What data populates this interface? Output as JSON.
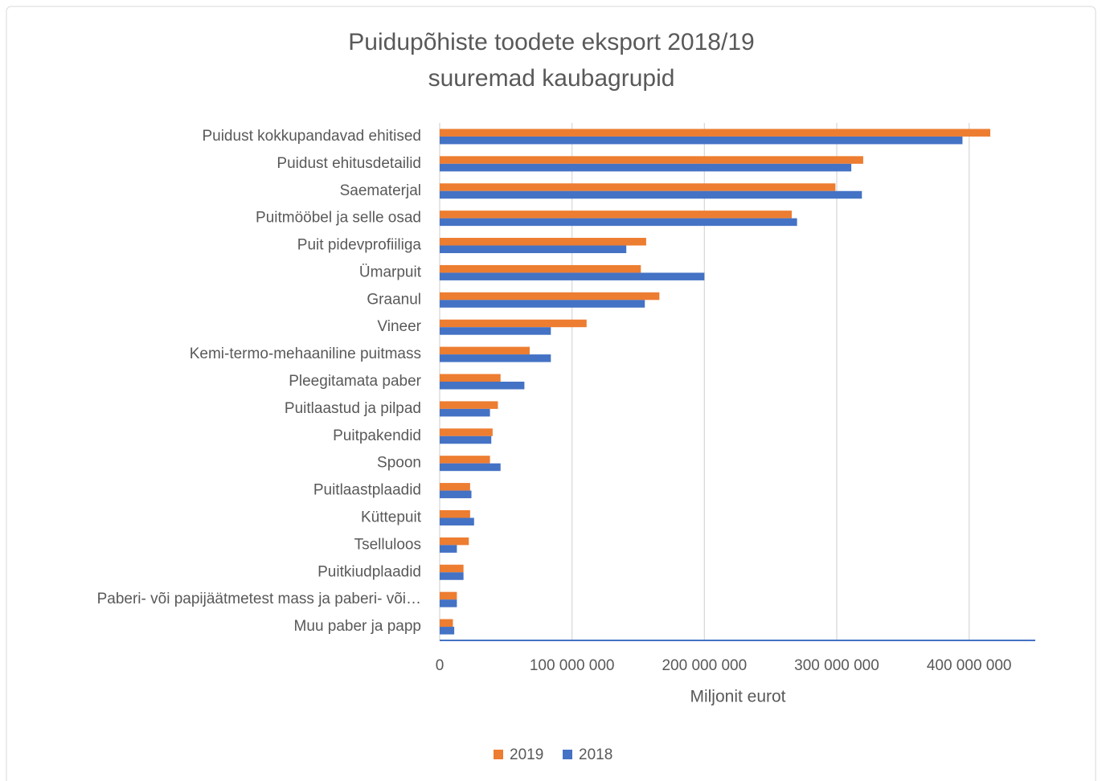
{
  "chart_data": {
    "type": "bar",
    "orientation": "horizontal",
    "title": "Puidupõhiste toodete eksport 2018/19",
    "subtitle": "suuremad kaubagrupid",
    "x_label": "Miljonit eurot",
    "categories": [
      "Puidust kokkupandavad ehitised",
      "Puidust ehitusdetailid",
      "Saematerjal",
      "Puitmööbel ja selle osad",
      "Puit pidevprofiiliga",
      "Ümarpuit",
      "Graanul",
      "Vineer",
      "Kemi-termo-mehaaniline puitmass",
      "Pleegitamata paber",
      "Puitlaastud ja pilpad",
      "Puitpakendid",
      "Spoon",
      "Puitlaastplaadid",
      "Küttepuit",
      "Tselluloos",
      "Puitkiudplaadid",
      "Paberi- või papijäätmetest mass ja paberi- või…",
      "Muu paber ja papp"
    ],
    "series": [
      {
        "name": "2019",
        "color": "#ed7d31",
        "values": [
          416000000,
          320000000,
          299000000,
          266000000,
          156000000,
          152000000,
          166000000,
          111000000,
          68000000,
          46000000,
          44000000,
          40000000,
          38000000,
          23000000,
          23000000,
          22000000,
          18000000,
          13000000,
          10000000
        ]
      },
      {
        "name": "2018",
        "color": "#4472c4",
        "values": [
          395000000,
          311000000,
          319000000,
          270000000,
          141000000,
          200000000,
          155000000,
          84000000,
          84000000,
          64000000,
          38000000,
          39000000,
          46000000,
          24000000,
          26000000,
          13000000,
          18000000,
          13000000,
          11000000
        ]
      }
    ],
    "xlim": [
      0,
      450000000
    ],
    "xticks": [
      0,
      {
        "value": 100000000,
        "label": "100 000 000"
      },
      {
        "value": 200000000,
        "label": "200 000 000"
      },
      {
        "value": 300000000,
        "label": "300 000 000"
      },
      {
        "value": 400000000,
        "label": "400 000 000"
      }
    ],
    "grid": true,
    "legend": "bottom"
  }
}
